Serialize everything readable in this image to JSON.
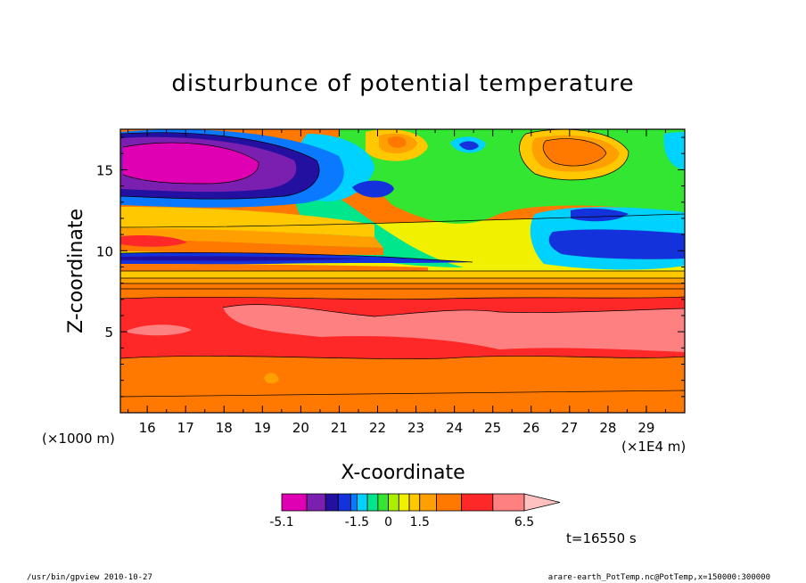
{
  "chart_data": {
    "type": "heatmap",
    "title": "disturbunce of potential temperature",
    "xlabel": "X-coordinate",
    "ylabel": "Z-coordinate",
    "xunit_left": "(×1000 m)",
    "xunit_right": "(×1E4 m)",
    "xlim": [
      15.3,
      30.0
    ],
    "ylim": [
      0,
      17.5
    ],
    "x_ticks": [
      "16",
      "17",
      "18",
      "19",
      "20",
      "21",
      "22",
      "23",
      "24",
      "25",
      "26",
      "27",
      "28",
      "29"
    ],
    "x_tick_values": [
      16,
      17,
      18,
      19,
      20,
      21,
      22,
      23,
      24,
      25,
      26,
      27,
      28,
      29
    ],
    "y_ticks": [
      "5",
      "10",
      "15"
    ],
    "y_tick_values": [
      5,
      10,
      15
    ],
    "colorbar": {
      "labels": [
        "-5.1",
        "-1.5",
        "0",
        "1.5",
        "6.5"
      ],
      "label_values": [
        -5.1,
        -1.5,
        0,
        1.5,
        6.5
      ],
      "levels": [
        -5.1,
        -3.9,
        -3.0,
        -2.4,
        -1.8,
        -1.5,
        -1.0,
        -0.5,
        0,
        0.5,
        1.0,
        1.5,
        2.3,
        3.5,
        5.0,
        6.5
      ],
      "colors": [
        "#e000b4",
        "#7a1fb0",
        "#2410a0",
        "#1432dc",
        "#0a78ff",
        "#00d2ff",
        "#00e68c",
        "#32e632",
        "#aaf000",
        "#f0f000",
        "#ffc800",
        "#ffa000",
        "#ff7800",
        "#ff2828",
        "#ff8080"
      ]
    },
    "time_label": "t=16550 s"
  },
  "footer": {
    "left": "/usr/bin/gpview  2010-10-27",
    "right": "arare-earth_PotTemp.nc@PotTemp,x=150000:300000"
  }
}
